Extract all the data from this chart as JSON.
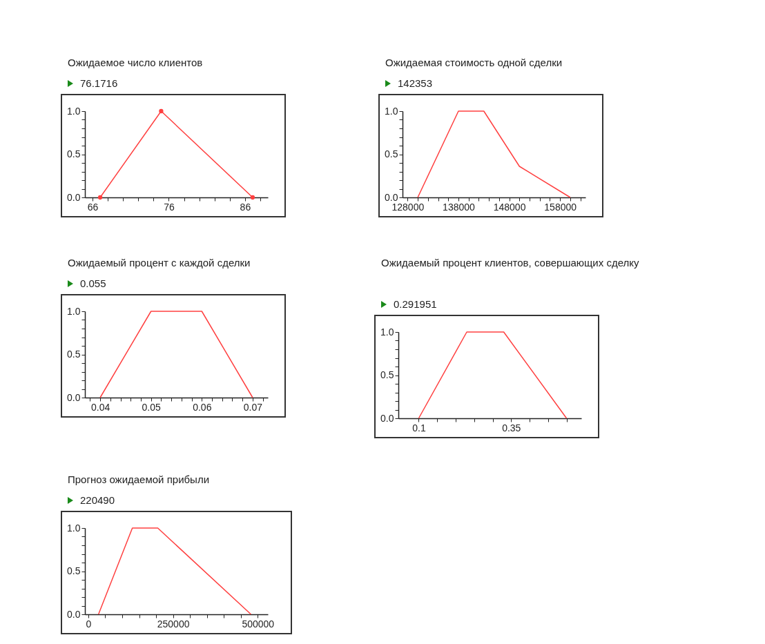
{
  "chart_data": [
    {
      "type": "line",
      "title": "Ожидаемое число клиентов",
      "subtitle": "76.1716",
      "x": [
        67,
        75,
        87
      ],
      "series": [
        {
          "color": "#ff4040",
          "values": [
            0,
            1,
            0
          ]
        }
      ],
      "xlim": [
        65,
        89
      ],
      "xticks": [
        66,
        {
          "value": 68,
          "label": null
        },
        {
          "value": 70,
          "label": null
        },
        {
          "value": 72,
          "label": null
        },
        {
          "value": 74,
          "label": null
        },
        76,
        {
          "value": 78,
          "label": null
        },
        {
          "value": 80,
          "label": null
        },
        {
          "value": 82,
          "label": null
        },
        {
          "value": 84,
          "label": null
        },
        86,
        {
          "value": 88,
          "label": null
        }
      ],
      "ylim": [
        0,
        1
      ],
      "yticks": [
        {
          "value": 0,
          "label": "0.0"
        },
        {
          "value": 0.1,
          "label": null
        },
        {
          "value": 0.2,
          "label": null
        },
        {
          "value": 0.3,
          "label": null
        },
        {
          "value": 0.4,
          "label": null
        },
        {
          "value": 0.5,
          "label": "0.5"
        },
        {
          "value": 0.6,
          "label": null
        },
        {
          "value": 0.7,
          "label": null
        },
        {
          "value": 0.8,
          "label": null
        },
        {
          "value": 0.9,
          "label": null
        },
        {
          "value": 1,
          "label": "1.0"
        }
      ],
      "marker": "circle"
    },
    {
      "type": "line",
      "title": "Ожидаемая стоимость одной сделки",
      "subtitle": "142353",
      "x": [
        130000,
        138000,
        143000,
        150000,
        160000
      ],
      "series": [
        {
          "color": "#ff4040",
          "values": [
            0,
            1,
            1,
            0.36,
            0
          ]
        }
      ],
      "xlim": [
        127000,
        163000
      ],
      "xticks": [
        128000,
        {
          "value": 130000,
          "label": null
        },
        {
          "value": 132000,
          "label": null
        },
        {
          "value": 134000,
          "label": null
        },
        {
          "value": 136000,
          "label": null
        },
        138000,
        {
          "value": 140000,
          "label": null
        },
        {
          "value": 142000,
          "label": null
        },
        {
          "value": 144000,
          "label": null
        },
        {
          "value": 146000,
          "label": null
        },
        148000,
        {
          "value": 150000,
          "label": null
        },
        {
          "value": 152000,
          "label": null
        },
        {
          "value": 154000,
          "label": null
        },
        {
          "value": 156000,
          "label": null
        },
        158000,
        {
          "value": 160000,
          "label": null
        },
        {
          "value": 162000,
          "label": null
        }
      ],
      "ylim": [
        0,
        1
      ],
      "yticks": [
        {
          "value": 0,
          "label": "0.0"
        },
        {
          "value": 0.1,
          "label": null
        },
        {
          "value": 0.2,
          "label": null
        },
        {
          "value": 0.3,
          "label": null
        },
        {
          "value": 0.4,
          "label": null
        },
        {
          "value": 0.5,
          "label": "0.5"
        },
        {
          "value": 0.6,
          "label": null
        },
        {
          "value": 0.7,
          "label": null
        },
        {
          "value": 0.8,
          "label": null
        },
        {
          "value": 0.9,
          "label": null
        },
        {
          "value": 1,
          "label": "1.0"
        }
      ]
    },
    {
      "type": "line",
      "title": "Ожидаемый процент с каждой сделки",
      "subtitle": "0.055",
      "x": [
        0.04,
        0.05,
        0.06,
        0.07
      ],
      "series": [
        {
          "color": "#ff4040",
          "values": [
            0,
            1,
            1,
            0
          ]
        }
      ],
      "xlim": [
        0.037,
        0.073
      ],
      "xticks": [
        {
          "value": 0.038,
          "label": null
        },
        0.04,
        {
          "value": 0.042,
          "label": null
        },
        {
          "value": 0.044,
          "label": null
        },
        {
          "value": 0.046,
          "label": null
        },
        {
          "value": 0.048,
          "label": null
        },
        0.05,
        {
          "value": 0.052,
          "label": null
        },
        {
          "value": 0.054,
          "label": null
        },
        {
          "value": 0.056,
          "label": null
        },
        {
          "value": 0.058,
          "label": null
        },
        0.06,
        {
          "value": 0.062,
          "label": null
        },
        {
          "value": 0.064,
          "label": null
        },
        {
          "value": 0.066,
          "label": null
        },
        {
          "value": 0.068,
          "label": null
        },
        0.07,
        {
          "value": 0.072,
          "label": null
        }
      ],
      "ylim": [
        0,
        1
      ],
      "yticks": [
        {
          "value": 0,
          "label": "0.0"
        },
        {
          "value": 0.1,
          "label": null
        },
        {
          "value": 0.2,
          "label": null
        },
        {
          "value": 0.3,
          "label": null
        },
        {
          "value": 0.4,
          "label": null
        },
        {
          "value": 0.5,
          "label": "0.5"
        },
        {
          "value": 0.6,
          "label": null
        },
        {
          "value": 0.7,
          "label": null
        },
        {
          "value": 0.8,
          "label": null
        },
        {
          "value": 0.9,
          "label": null
        },
        {
          "value": 1,
          "label": "1.0"
        }
      ]
    },
    {
      "type": "line",
      "title": "Ожидаемый процент клиентов, совершающих сделку",
      "subtitle": "0.291951",
      "x": [
        0.1,
        0.23,
        0.33,
        0.5
      ],
      "series": [
        {
          "color": "#ff4040",
          "values": [
            0,
            1,
            1,
            0
          ]
        }
      ],
      "xlim": [
        0.045,
        0.54
      ],
      "xticks": [
        0.1,
        {
          "value": 0.15,
          "label": null
        },
        {
          "value": 0.2,
          "label": null
        },
        {
          "value": 0.25,
          "label": null
        },
        {
          "value": 0.3,
          "label": null
        },
        0.35,
        {
          "value": 0.4,
          "label": null
        },
        {
          "value": 0.45,
          "label": null
        },
        {
          "value": 0.5,
          "label": null
        }
      ],
      "ylim": [
        0,
        1
      ],
      "yticks": [
        {
          "value": 0,
          "label": "0.0"
        },
        {
          "value": 0.1,
          "label": null
        },
        {
          "value": 0.2,
          "label": null
        },
        {
          "value": 0.3,
          "label": null
        },
        {
          "value": 0.4,
          "label": null
        },
        {
          "value": 0.5,
          "label": "0.5"
        },
        {
          "value": 0.6,
          "label": null
        },
        {
          "value": 0.7,
          "label": null
        },
        {
          "value": 0.8,
          "label": null
        },
        {
          "value": 0.9,
          "label": null
        },
        {
          "value": 1,
          "label": "1.0"
        }
      ]
    },
    {
      "type": "line",
      "title": "Прогноз ожидаемой прибыли",
      "subtitle": "220490",
      "x": [
        30000,
        130000,
        205000,
        480000
      ],
      "series": [
        {
          "color": "#ff4040",
          "values": [
            0,
            1,
            1,
            0
          ]
        }
      ],
      "xlim": [
        -10000,
        530000
      ],
      "xticks": [
        0,
        {
          "value": 50000,
          "label": null
        },
        {
          "value": 100000,
          "label": null
        },
        {
          "value": 150000,
          "label": null
        },
        {
          "value": 200000,
          "label": null
        },
        250000,
        {
          "value": 300000,
          "label": null
        },
        {
          "value": 350000,
          "label": null
        },
        {
          "value": 400000,
          "label": null
        },
        {
          "value": 450000,
          "label": null
        },
        500000
      ],
      "ylim": [
        0,
        1
      ],
      "yticks": [
        {
          "value": 0,
          "label": "0.0"
        },
        {
          "value": 0.1,
          "label": null
        },
        {
          "value": 0.2,
          "label": null
        },
        {
          "value": 0.3,
          "label": null
        },
        {
          "value": 0.4,
          "label": null
        },
        {
          "value": 0.5,
          "label": "0.5"
        },
        {
          "value": 0.6,
          "label": null
        },
        {
          "value": 0.7,
          "label": null
        },
        {
          "value": 0.8,
          "label": null
        },
        {
          "value": 0.9,
          "label": null
        },
        {
          "value": 1,
          "label": "1.0"
        }
      ]
    }
  ]
}
